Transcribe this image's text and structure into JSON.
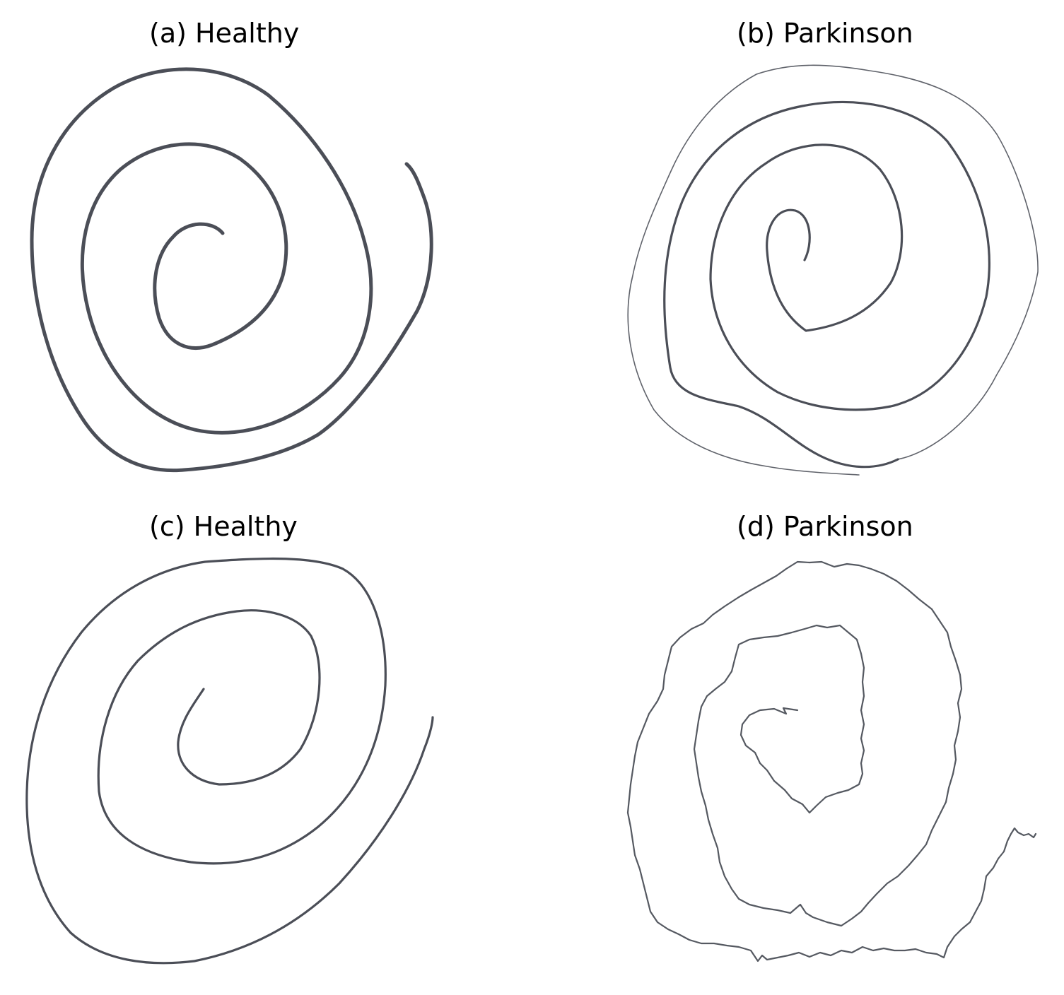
{
  "panels": [
    {
      "label": "(a) Healthy",
      "class": "Healthy"
    },
    {
      "label": "(b) Parkinson",
      "class": "Parkinson"
    },
    {
      "label": "(c) Healthy",
      "class": "Healthy"
    },
    {
      "label": "(d) Parkinson",
      "class": "Parkinson"
    }
  ],
  "colors": {
    "background": "#ffffff",
    "ink": "#2b2f3a",
    "title": "#000000"
  }
}
